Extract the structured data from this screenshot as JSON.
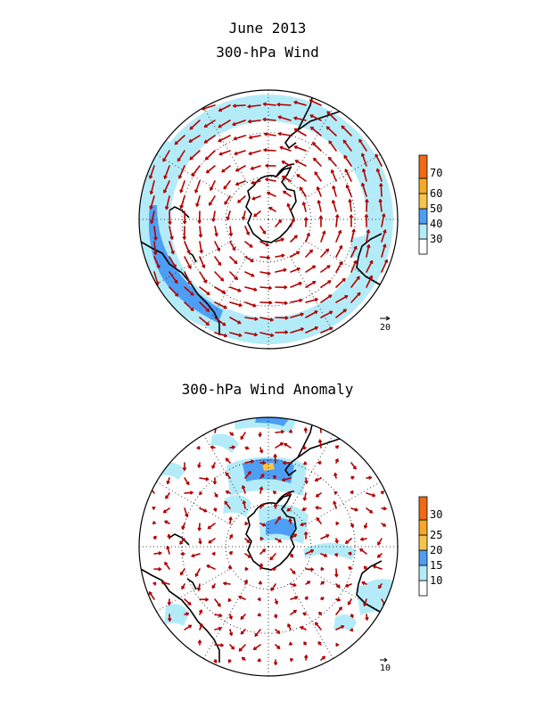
{
  "title": "June 2013",
  "colors": {
    "arrow": "#b30000",
    "coast": "#000000",
    "bins": [
      "#ffffff",
      "#b3ecf8",
      "#4d9ef5",
      "#f8c44a",
      "#f06a14"
    ]
  },
  "panels": [
    {
      "subtitle": "300-hPa Wind",
      "reference_vector_label": "20",
      "legend": {
        "ticks": [
          "30",
          "40",
          "50",
          "60",
          "70"
        ]
      }
    },
    {
      "subtitle": "300-hPa Wind Anomaly",
      "reference_vector_label": "10",
      "legend": {
        "ticks": [
          "10",
          "15",
          "20",
          "25",
          "30"
        ]
      }
    }
  ]
}
